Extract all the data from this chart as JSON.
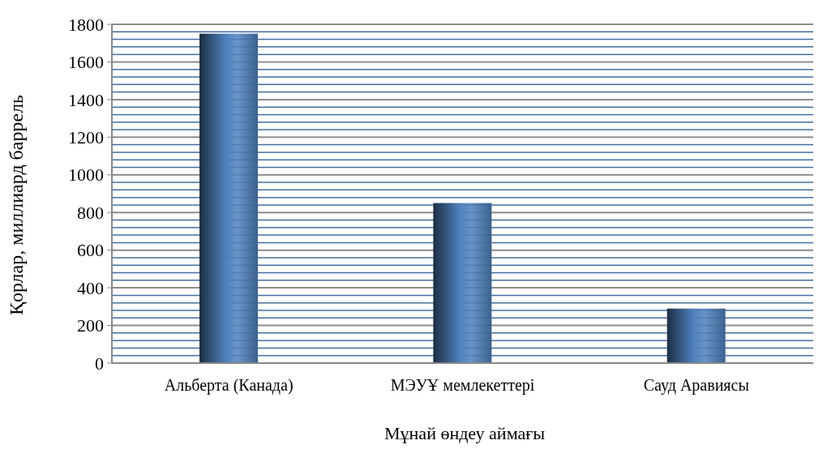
{
  "chart_data": {
    "type": "bar",
    "xlabel": "Мұнай өндеу аймағы",
    "ylabel": "Қорлар, миллиард баррель",
    "categories": [
      "Альберта (Канада)",
      "МЭУҰ  мемлекеттері",
      "Сауд Аравиясы"
    ],
    "values": [
      1750,
      850,
      290
    ],
    "color": "#4f81bd",
    "ylim": [
      0,
      1800
    ],
    "yticks": [
      0,
      {
        "value": 40,
        "label": null
      },
      {
        "value": 80,
        "label": null
      },
      {
        "value": 120,
        "label": null
      },
      {
        "value": 160,
        "label": null
      },
      200,
      {
        "value": 240,
        "label": null
      },
      {
        "value": 280,
        "label": null
      },
      {
        "value": 320,
        "label": null
      },
      {
        "value": 360,
        "label": null
      },
      400,
      {
        "value": 440,
        "label": null
      },
      {
        "value": 480,
        "label": null
      },
      {
        "value": 520,
        "label": null
      },
      {
        "value": 560,
        "label": null
      },
      600,
      {
        "value": 640,
        "label": null
      },
      {
        "value": 680,
        "label": null
      },
      {
        "value": 720,
        "label": null
      },
      {
        "value": 760,
        "label": null
      },
      800,
      {
        "value": 840,
        "label": null
      },
      {
        "value": 880,
        "label": null
      },
      {
        "value": 920,
        "label": null
      },
      {
        "value": 960,
        "label": null
      },
      1000,
      {
        "value": 1040,
        "label": null
      },
      {
        "value": 1080,
        "label": null
      },
      {
        "value": 1120,
        "label": null
      },
      {
        "value": 1160,
        "label": null
      },
      1200,
      {
        "value": 1240,
        "label": null
      },
      {
        "value": 1280,
        "label": null
      },
      {
        "value": 1320,
        "label": null
      },
      {
        "value": 1360,
        "label": null
      },
      1400,
      {
        "value": 1440,
        "label": null
      },
      {
        "value": 1480,
        "label": null
      },
      {
        "value": 1520,
        "label": null
      },
      {
        "value": 1560,
        "label": null
      },
      1600,
      {
        "value": 1640,
        "label": null
      },
      {
        "value": 1680,
        "label": null
      },
      {
        "value": 1720,
        "label": null
      },
      {
        "value": 1760,
        "label": null
      },
      1800
    ],
    "grid": "y"
  }
}
